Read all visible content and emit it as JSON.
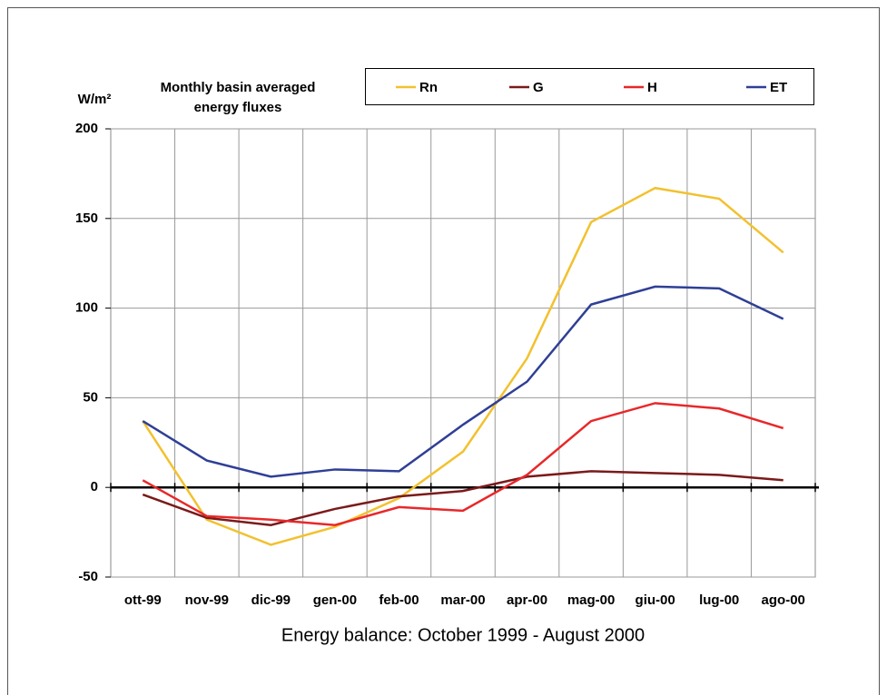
{
  "chart_data": {
    "type": "line",
    "title": [
      "Monthly basin averaged",
      "energy fluxes"
    ],
    "y_label": "W/m²",
    "x_label": "Energy balance: October 1999 - August 2000",
    "categories": [
      "ott-99",
      "nov-99",
      "dic-99",
      "gen-00",
      "feb-00",
      "mar-00",
      "apr-00",
      "mag-00",
      "giu-00",
      "lug-00",
      "ago-00"
    ],
    "series": [
      {
        "name": "Rn",
        "color": "#f2c12e",
        "values": [
          37,
          -18,
          -32,
          -22,
          -6,
          20,
          72,
          148,
          167,
          161,
          131
        ]
      },
      {
        "name": "G",
        "color": "#7b1a1a",
        "values": [
          -4,
          -17,
          -21,
          -12,
          -5,
          -2,
          6,
          9,
          8,
          7,
          4
        ]
      },
      {
        "name": "H",
        "color": "#e8282a",
        "values": [
          4,
          -16,
          -18,
          -21,
          -11,
          -13,
          7,
          37,
          47,
          44,
          33
        ]
      },
      {
        "name": "ET",
        "color": "#2f3f96",
        "values": [
          37,
          15,
          6,
          10,
          9,
          35,
          59,
          102,
          112,
          111,
          94
        ]
      }
    ],
    "ylim": [
      -50,
      200
    ],
    "yticks": [
      -50,
      0,
      50,
      100,
      150,
      200
    ],
    "grid": true
  }
}
